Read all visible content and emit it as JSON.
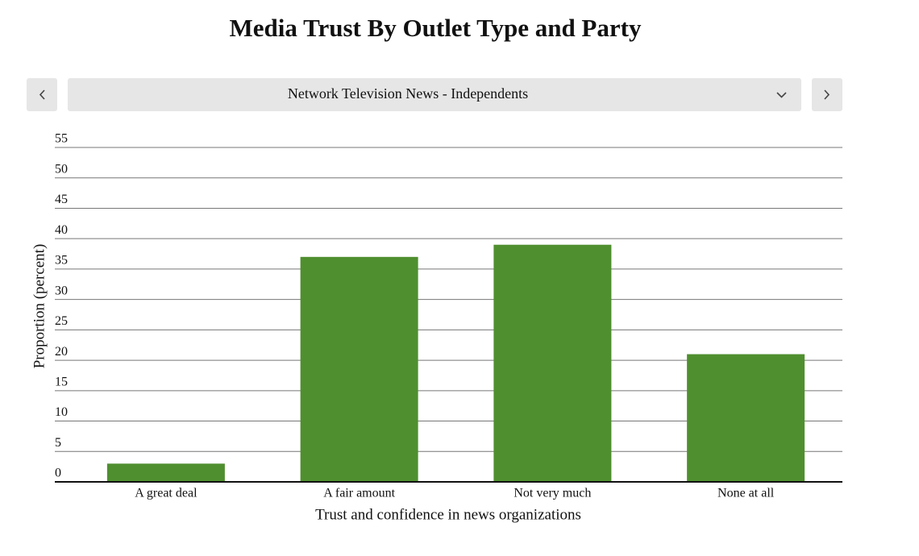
{
  "controls": {
    "selected": "Network Television News - Independents"
  },
  "chart_data": {
    "type": "bar",
    "title": "Media Trust By Outlet Type and Party",
    "x_label": "Trust and confidence in news organizations",
    "y_label": "Proportion (percent)",
    "categories": [
      "A great deal",
      "A fair amount",
      "Not very much",
      "None at all"
    ],
    "values": [
      3,
      37,
      39,
      21
    ],
    "color": "#4f8f2f",
    "ylim": [
      0,
      55
    ],
    "yticks": [
      0,
      5,
      10,
      15,
      20,
      25,
      30,
      35,
      40,
      45,
      50,
      55
    ],
    "grid": true
  }
}
